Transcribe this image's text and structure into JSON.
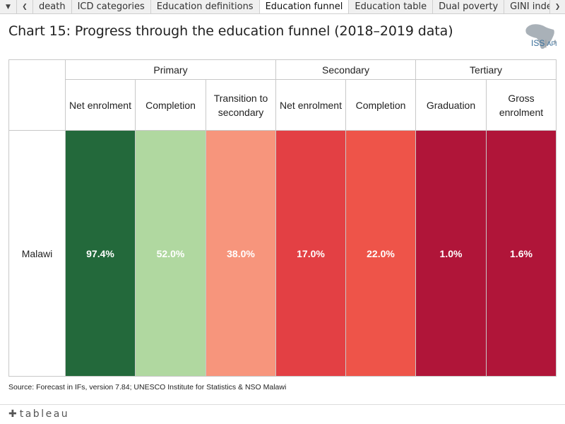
{
  "tabs": {
    "menu_icon": "dropdown-arrow-icon",
    "prev_icon": "chevron-left-icon",
    "next_icon": "chevron-right-icon",
    "items": [
      "death",
      "ICD categories",
      "Education definitions",
      "Education funnel",
      "Education table",
      "Dual poverty",
      "GINI index"
    ],
    "active": "Education funnel"
  },
  "title": "Chart 15: Progress through the education funnel (2018–2019 data)",
  "logo": {
    "text": "ISS",
    "suffix": "AFI"
  },
  "table": {
    "groups": [
      {
        "label": "Primary"
      },
      {
        "label": "Secondary"
      },
      {
        "label": "Tertiary"
      }
    ],
    "columns": [
      {
        "label": "Net enrolment"
      },
      {
        "label": "Completion"
      },
      {
        "label": "Transition to secondary"
      },
      {
        "label": "Net enrolment"
      },
      {
        "label": "Completion"
      },
      {
        "label": "Graduation"
      },
      {
        "label": "Gross enrolment"
      }
    ],
    "row_label": "Malawi",
    "values": [
      "97.4%",
      "52.0%",
      "38.0%",
      "17.0%",
      "22.0%",
      "1.0%",
      "1.6%"
    ],
    "colors": [
      "#23693b",
      "#b0d8a0",
      "#f7957c",
      "#e34044",
      "#ee5449",
      "#b01539",
      "#b01539"
    ]
  },
  "chart_data": {
    "type": "table",
    "title": "Chart 15: Progress through the education funnel (2018–2019 data)",
    "rows": [
      "Malawi"
    ],
    "column_groups": [
      "Primary",
      "Secondary",
      "Tertiary"
    ],
    "columns": [
      "Net enrolment",
      "Completion",
      "Transition to secondary",
      "Net enrolment",
      "Completion",
      "Graduation",
      "Gross enrolment"
    ],
    "values": [
      [
        97.4,
        52.0,
        38.0,
        17.0,
        22.0,
        1.0,
        1.6
      ]
    ],
    "unit": "%"
  },
  "source": "Source: Forecast in IFs, version 7.84; UNESCO Institute for Statistics & NSO Malawi",
  "footer": {
    "brand": "tableau"
  }
}
